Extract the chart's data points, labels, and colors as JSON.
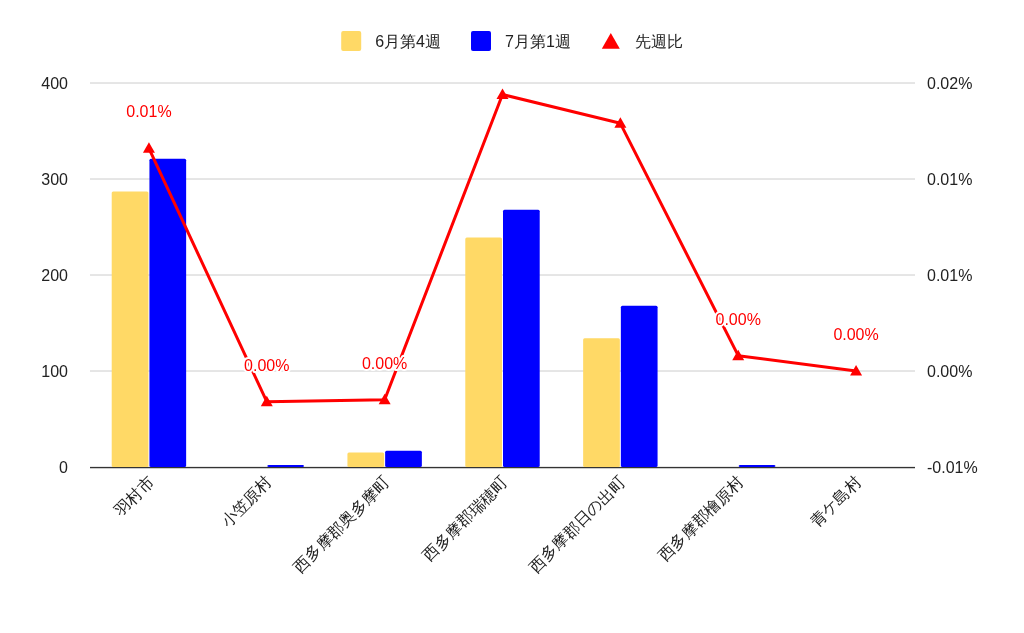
{
  "chart_data": {
    "type": "bar",
    "categories": [
      "羽村市",
      "小笠原村",
      "西多摩郡奥多摩町",
      "西多摩郡瑞穂町",
      "西多摩郡日の出町",
      "西多摩郡檜原村",
      "青ケ島村"
    ],
    "series": [
      {
        "name": "6月第4週",
        "color": "#ffd966",
        "values": [
          287,
          0,
          15,
          239,
          134,
          0,
          0
        ]
      },
      {
        "name": "7月第1週",
        "color": "#0000ff",
        "values": [
          321,
          2,
          17,
          268,
          168,
          2,
          0
        ]
      },
      {
        "name": "先週比",
        "type": "line",
        "axis": "y2",
        "color": "#ff0000",
        "marker": "triangle",
        "line_style": "solid",
        "values": [
          0.0116,
          -0.0016,
          -0.0015,
          0.0144,
          0.0129,
          0.0008,
          0.0
        ],
        "value_labels": [
          "0.01%",
          "0.00%",
          "0.00%",
          null,
          null,
          "0.00%",
          "0.00%"
        ]
      }
    ],
    "ylim": [
      0,
      400
    ],
    "yticks": [
      0,
      100,
      200,
      300,
      400
    ],
    "y2lim": [
      -0.005,
      0.015
    ],
    "y2ticks": [
      {
        "value": -0.005,
        "label": "-0.01%"
      },
      {
        "value": 0,
        "label": "0.00%"
      },
      {
        "value": 0.005,
        "label": "0.01%"
      },
      {
        "value": 0.01,
        "label": "0.01%"
      },
      {
        "value": 0.015,
        "label": "0.02%"
      }
    ],
    "grid": "y",
    "legend": "top"
  }
}
